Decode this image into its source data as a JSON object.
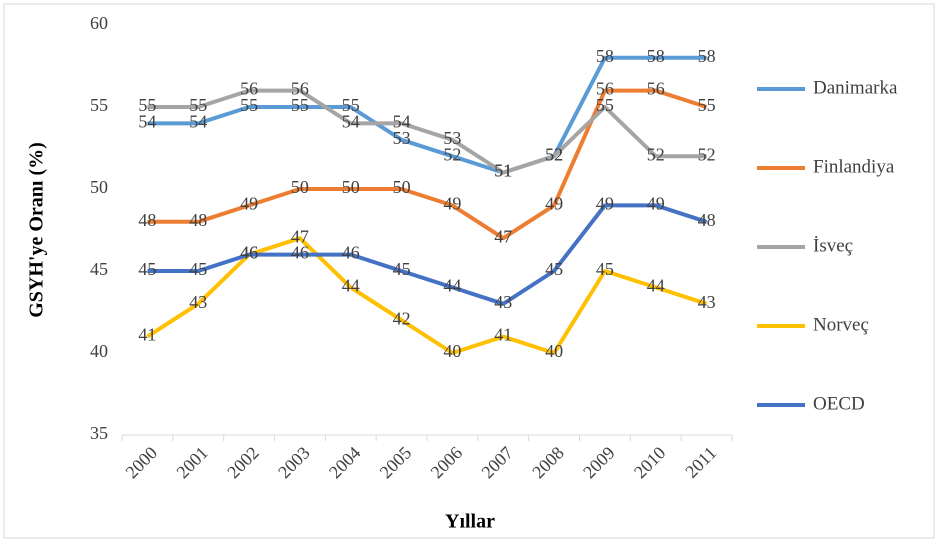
{
  "chart_data": {
    "type": "line",
    "x_label": "Yıllar",
    "y_label": "GSYH'ye Oranı (%)",
    "categories": [
      "2000",
      "2001",
      "2002",
      "2003",
      "2004",
      "2005",
      "2006",
      "2007",
      "2008",
      "2009",
      "2010",
      "2011"
    ],
    "series": [
      {
        "name": "Danimarka",
        "color": "#5b9bd5",
        "values": [
          54,
          54,
          55,
          55,
          55,
          53,
          52,
          51,
          52,
          58,
          58,
          58
        ]
      },
      {
        "name": "Finlandiya",
        "color": "#ed7d31",
        "values": [
          48,
          48,
          49,
          50,
          50,
          50,
          49,
          47,
          49,
          56,
          56,
          55
        ]
      },
      {
        "name": "İsveç",
        "color": "#a5a5a5",
        "values": [
          55,
          55,
          56,
          56,
          54,
          54,
          53,
          51,
          52,
          55,
          52,
          52
        ]
      },
      {
        "name": "Norveç",
        "color": "#ffc000",
        "values": [
          41,
          43,
          46,
          47,
          44,
          42,
          40,
          41,
          40,
          45,
          44,
          43
        ]
      },
      {
        "name": "OECD",
        "color": "#4472c4",
        "values": [
          45,
          45,
          46,
          46,
          46,
          45,
          44,
          43,
          45,
          49,
          49,
          48
        ]
      }
    ],
    "ylim": [
      35,
      60
    ],
    "yticks": [
      35,
      40,
      45,
      50,
      55,
      60
    ],
    "grid": false,
    "legend": "right"
  }
}
